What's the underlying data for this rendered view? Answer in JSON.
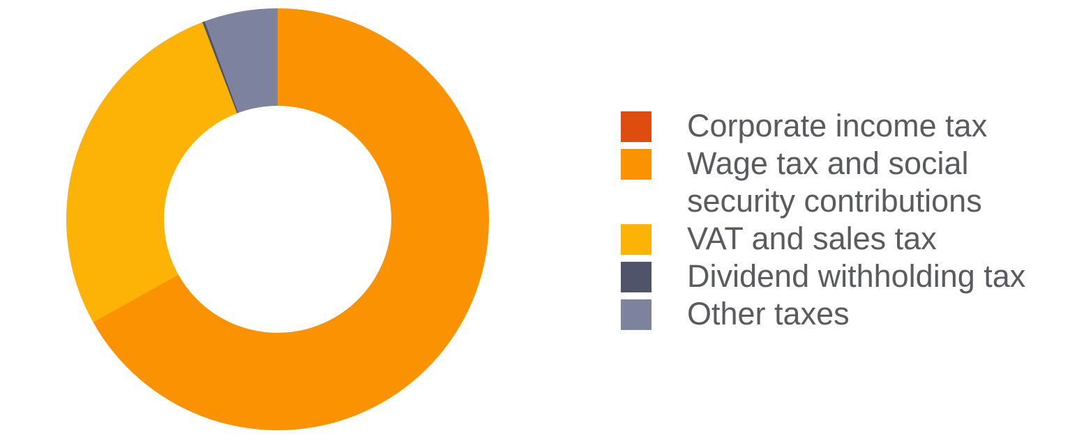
{
  "colors": {
    "background": "#ffffff",
    "legend_text": "#5A5B5F"
  },
  "chart_data": {
    "type": "pie",
    "subtype": "donut",
    "title": "",
    "unit": "percent_share_estimated_from_arc_angles",
    "direction": "clockwise",
    "start_angle": "12-oclock",
    "inner_radius_ratio": 0.54,
    "legend_position": "right",
    "slices": [
      {
        "label": "Corporate income tax",
        "value": 0,
        "color": "#DF4D0E"
      },
      {
        "label": "Wage tax and social security contributions",
        "value": 66.9,
        "color": "#FB9202"
      },
      {
        "label": "VAT and sales tax",
        "value": 27.3,
        "color": "#FDB305"
      },
      {
        "label": "Dividend withholding tax",
        "value": 0.2,
        "color": "#50546A"
      },
      {
        "label": "Other taxes",
        "value": 5.6,
        "color": "#7D829E"
      }
    ]
  }
}
